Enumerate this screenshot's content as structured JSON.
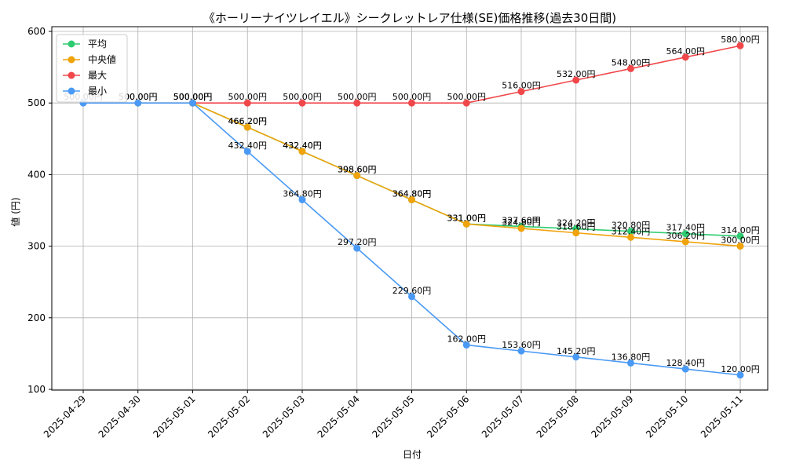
{
  "chart_data": {
    "type": "line",
    "title": "《ホーリーナイツレイエル》シークレットレア仕様(SE)価格推移(過去30日間)",
    "xlabel": "日付",
    "ylabel": "値 (円)",
    "ylim": [
      100,
      600
    ],
    "yticks": [
      100,
      200,
      300,
      400,
      500,
      600
    ],
    "grid": true,
    "legend_position": "top-left",
    "x": [
      "2025-04-29",
      "2025-04-30",
      "2025-05-01",
      "2025-05-02",
      "2025-05-03",
      "2025-05-04",
      "2025-05-05",
      "2025-05-06",
      "2025-05-07",
      "2025-05-08",
      "2025-05-09",
      "2025-05-10",
      "2025-05-11"
    ],
    "series": [
      {
        "name": "平均",
        "color": "#2ecc71",
        "values": [
          null,
          null,
          500.0,
          466.2,
          432.4,
          398.6,
          364.8,
          331.0,
          327.6,
          324.2,
          320.8,
          317.4,
          314.0
        ]
      },
      {
        "name": "中央値",
        "color": "#f0a30a",
        "values": [
          null,
          500.0,
          500.0,
          466.2,
          432.4,
          398.6,
          364.8,
          331.0,
          324.8,
          318.6,
          312.4,
          306.2,
          300.0
        ]
      },
      {
        "name": "最大",
        "color": "#f0474a",
        "values": [
          null,
          null,
          500.0,
          500.0,
          500.0,
          500.0,
          500.0,
          500.0,
          516.0,
          532.0,
          548.0,
          564.0,
          580.0
        ]
      },
      {
        "name": "最小",
        "color": "#4a9af5",
        "values": [
          500.0,
          500.0,
          500.0,
          432.4,
          364.8,
          297.2,
          229.6,
          162.0,
          153.6,
          145.2,
          136.8,
          128.4,
          120.0
        ]
      }
    ],
    "label_suffix": "円"
  }
}
